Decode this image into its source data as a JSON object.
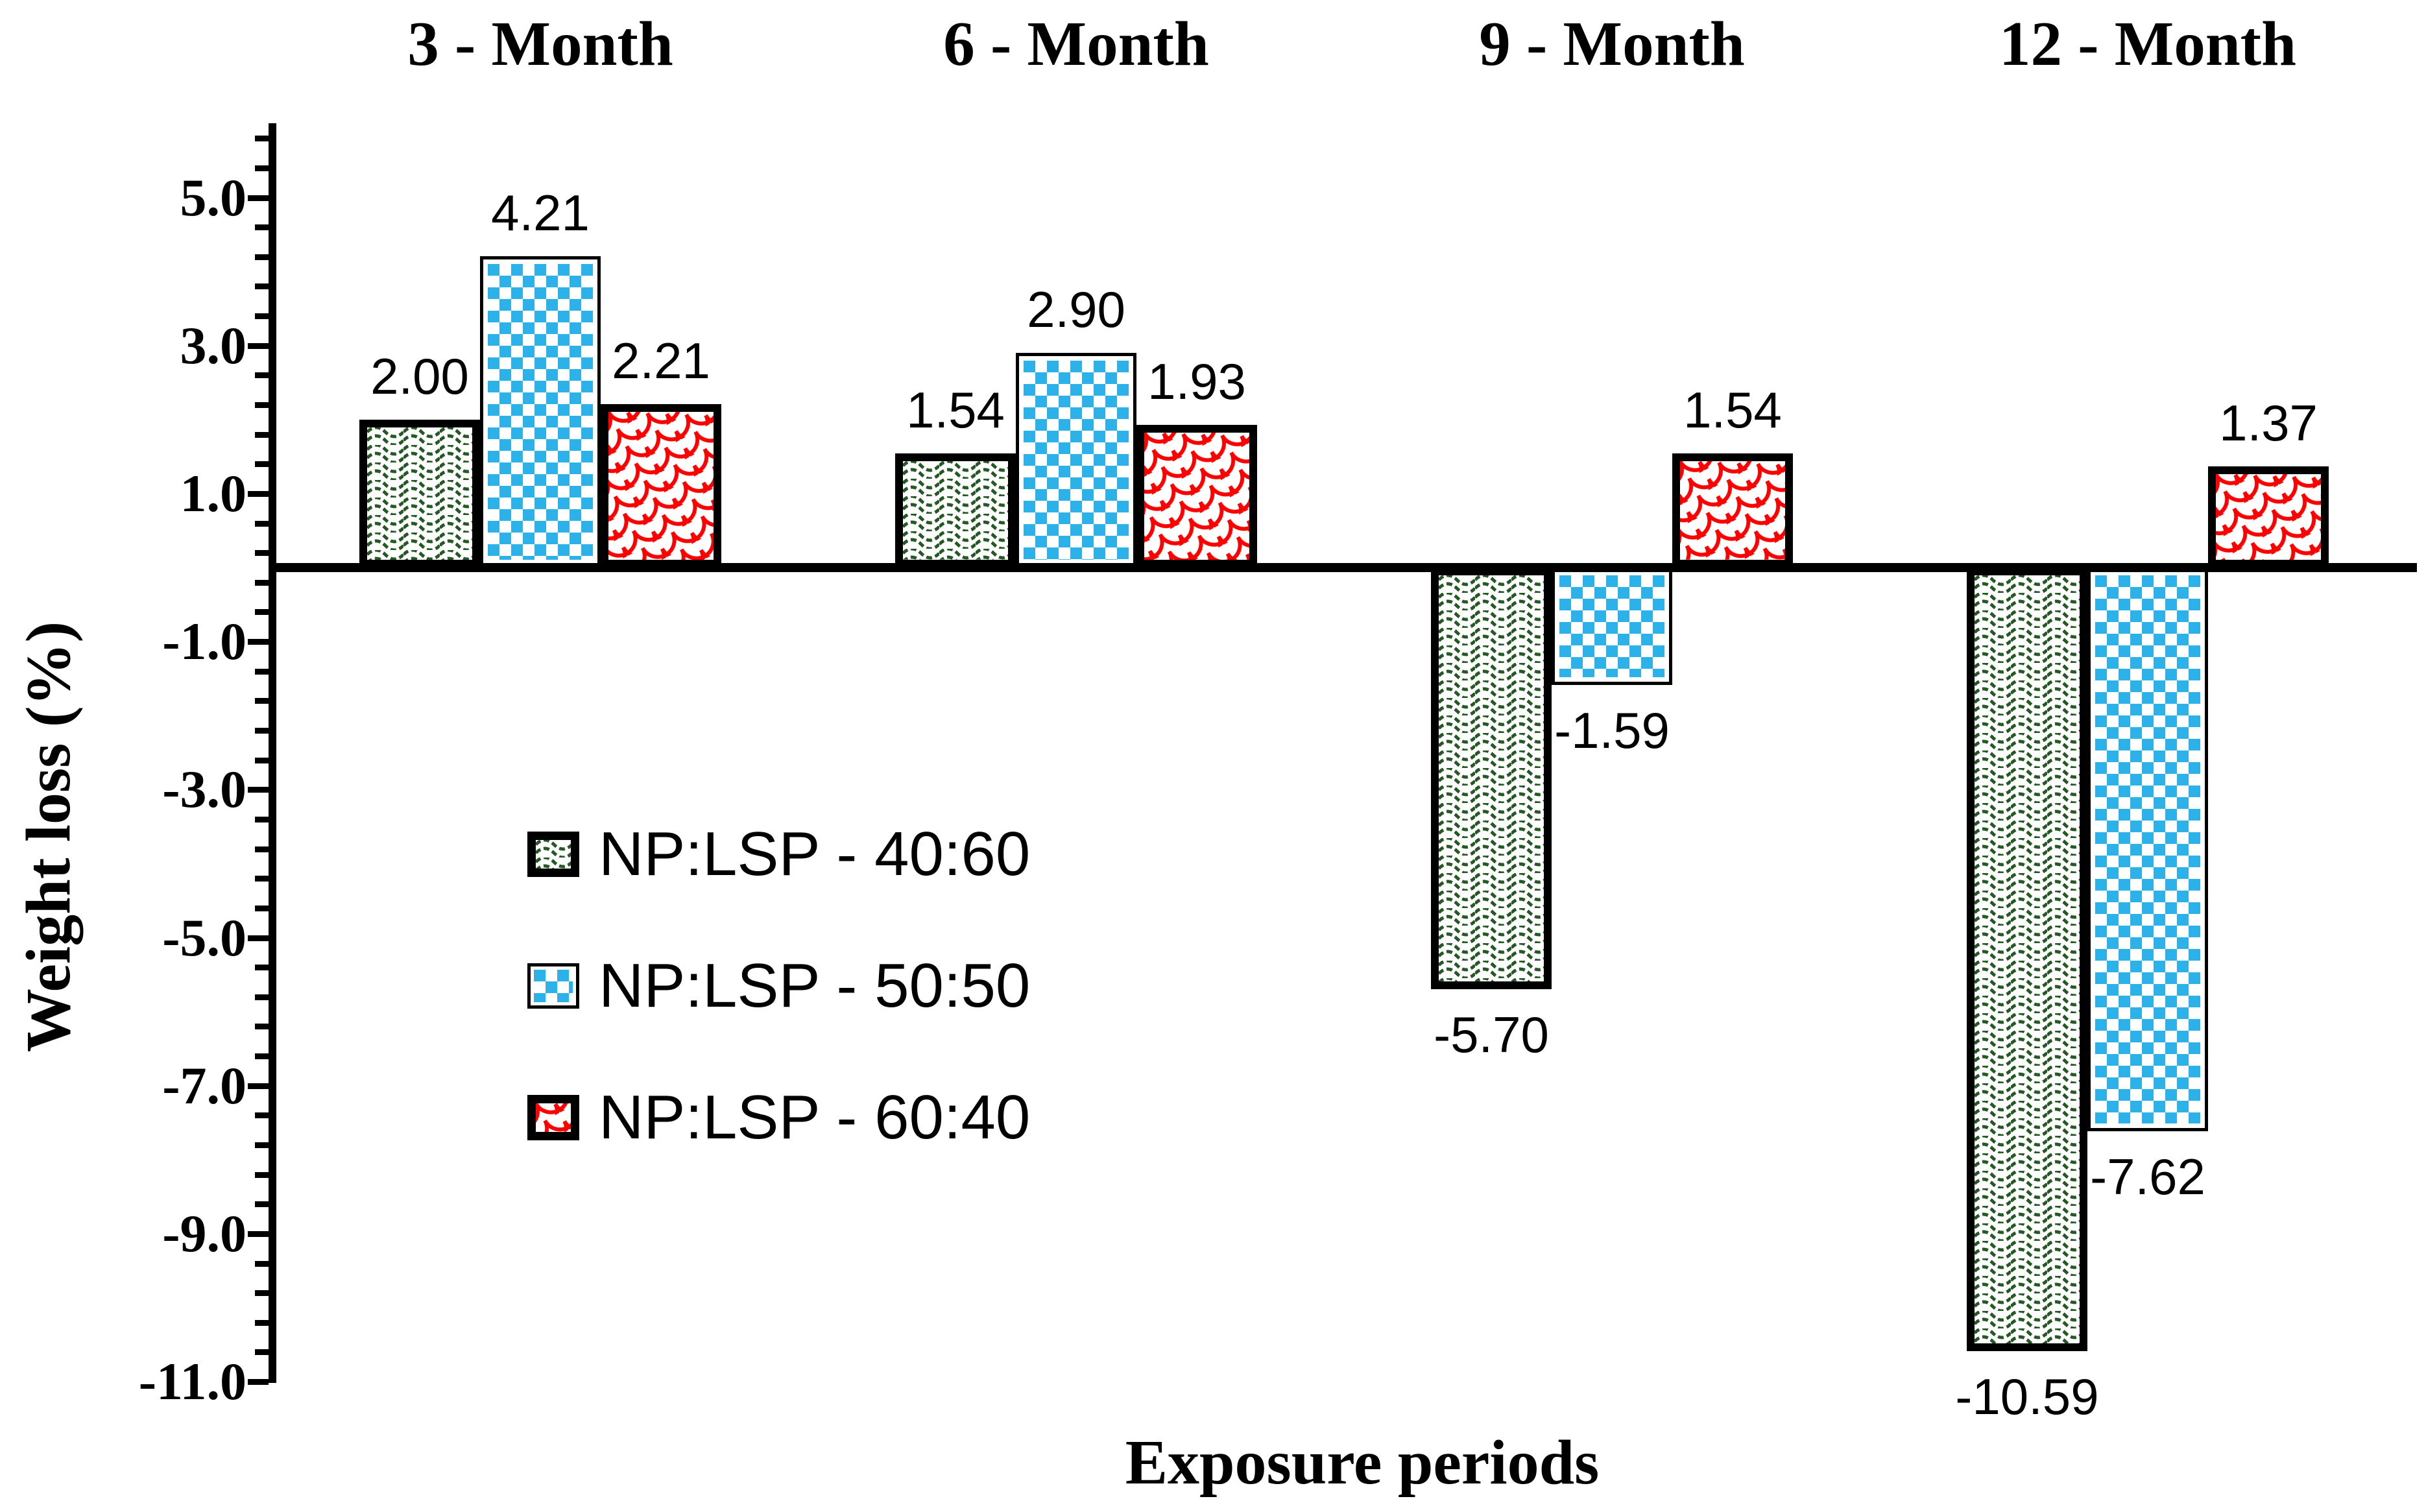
{
  "chart_data": {
    "type": "bar",
    "title": "",
    "xlabel": "Exposure periods",
    "ylabel": "Weight loss (%)",
    "categories": [
      "3 - Month",
      "6 - Month",
      "9 - Month",
      "12 - Month"
    ],
    "series": [
      {
        "name": "NP:LSP - 40:60",
        "pattern": "green-wave",
        "color": "#265826",
        "border": "thick",
        "values": [
          2.0,
          1.54,
          -5.7,
          -10.59
        ]
      },
      {
        "name": "NP:LSP - 50:50",
        "pattern": "blue-checker",
        "color": "#2CB1E8",
        "border": "thin",
        "values": [
          4.21,
          2.9,
          -1.59,
          -7.62
        ]
      },
      {
        "name": "NP:LSP - 60:40",
        "pattern": "red-scale",
        "color": "#FF0000",
        "border": "thick",
        "values": [
          2.21,
          1.93,
          1.54,
          1.37
        ]
      }
    ],
    "value_label_format": "two-decimals",
    "ylim": [
      -11.0,
      6.0
    ],
    "ytick_labels": [
      5.0,
      3.0,
      1.0,
      -1.0,
      -3.0,
      -5.0,
      -7.0,
      -9.0,
      -11.0
    ],
    "ytick_label_format": "one-decimal",
    "major_tick_unit": 2.0,
    "minor_tick_unit": 0.4,
    "grid": false,
    "legend_position": "middle-left",
    "axis_color": "#000000",
    "text_color": "#000000",
    "background_color": "#FFFFFF"
  }
}
